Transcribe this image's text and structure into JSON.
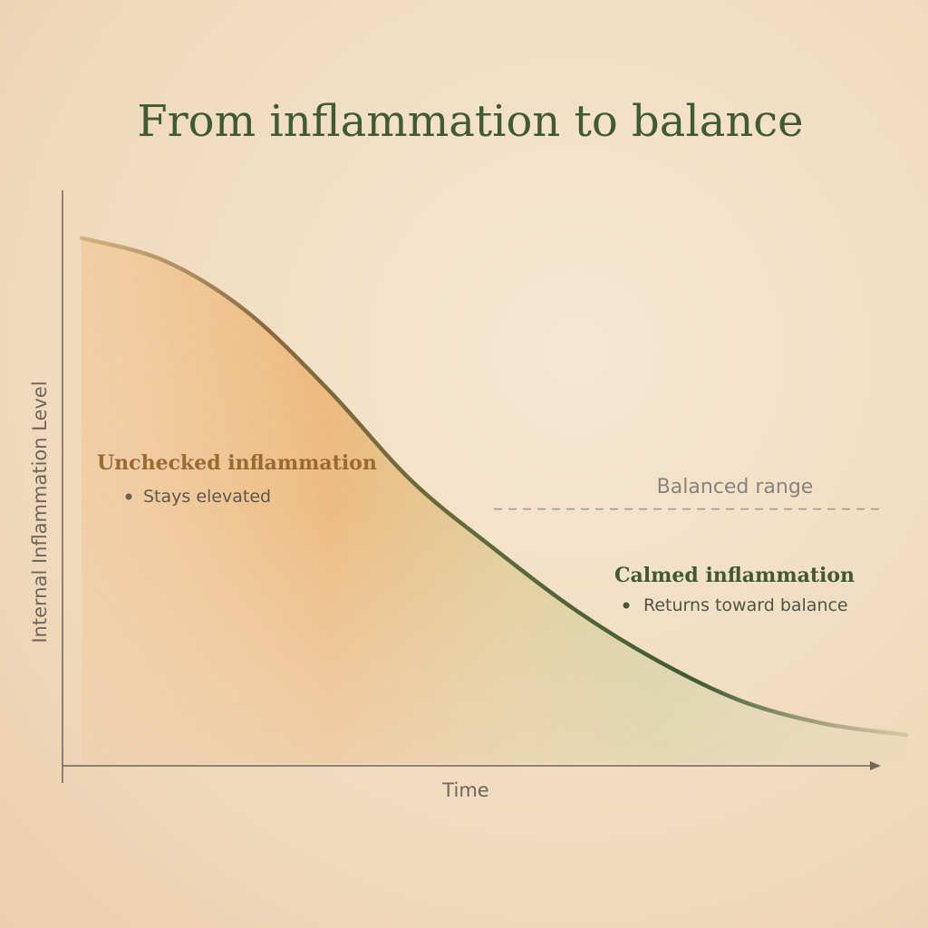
{
  "chart_data": {
    "type": "area",
    "title": "From inflammation to balance",
    "xlabel": "Time",
    "ylabel": "Internal Inflammation Level",
    "xlim": [
      0,
      100
    ],
    "ylim": [
      0,
      100
    ],
    "grid": false,
    "series": [
      {
        "x": [
          0,
          10,
          20,
          30,
          40,
          50,
          60,
          70,
          80,
          90,
          100
        ],
        "values": [
          93,
          89,
          80,
          66,
          50,
          38,
          27,
          18,
          11,
          7,
          5
        ]
      }
    ],
    "reference_lines": [
      {
        "label": "Balanced range",
        "y": 45,
        "x_start": 50,
        "x_end": 100,
        "style": "dashed"
      }
    ],
    "annotations": [
      {
        "heading": "Unchecked inflammation",
        "bullet": "Stays elevated",
        "tone": "#9a6a35"
      },
      {
        "heading": "Calmed inflammation",
        "bullet": "Returns toward balance",
        "tone": "#3f5a34"
      }
    ],
    "colors": {
      "curve_start": "#a88a52",
      "curve_mid": "#4e6b3e",
      "curve_end": "#c9b98e",
      "fill_warm": "#e8a04e",
      "fill_green": "#9bbd6a",
      "axis": "#6f6558",
      "reference": "#a39c90"
    }
  }
}
